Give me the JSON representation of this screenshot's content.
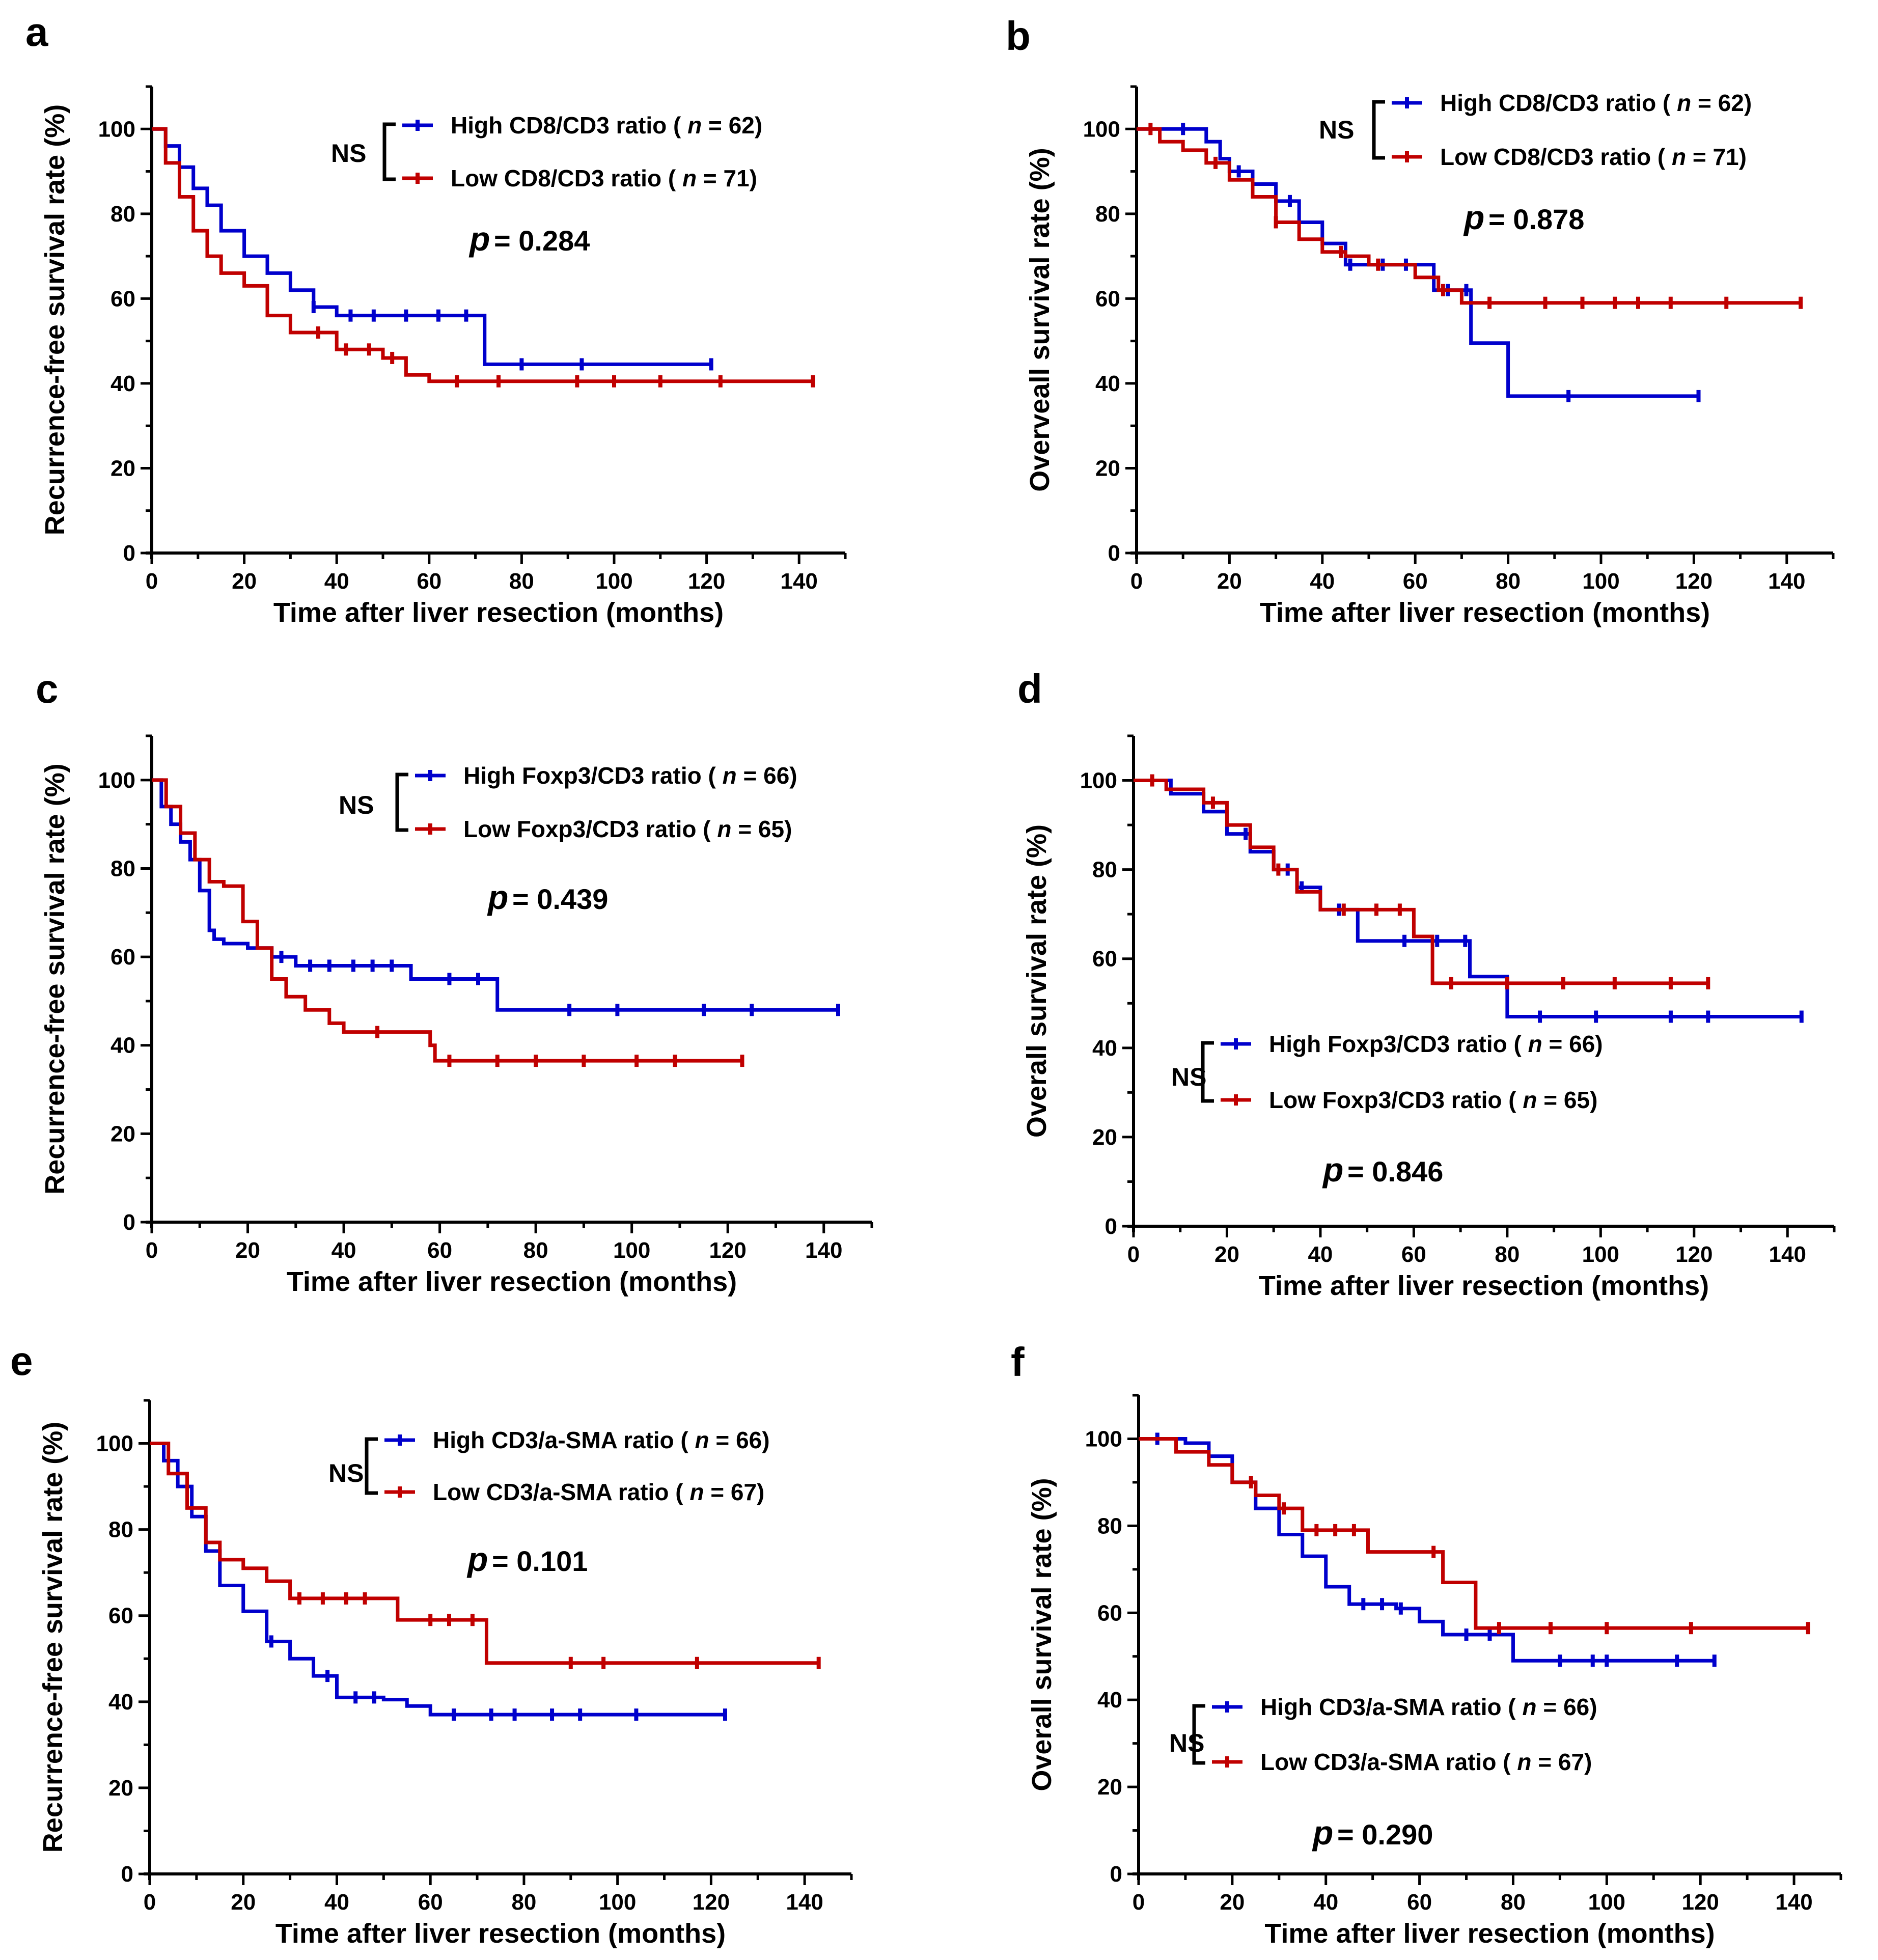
{
  "chart_data": [
    {
      "type": "line",
      "panel": "a",
      "xlabel": "Time after liver resection (months)",
      "ylabel": "Recurrence-free survival rate (%)",
      "xlim": [
        0,
        150
      ],
      "ylim": [
        0,
        110
      ],
      "xticks": [
        0,
        20,
        40,
        60,
        80,
        100,
        120,
        140
      ],
      "yticks": [
        0,
        20,
        40,
        60,
        80,
        100
      ],
      "legend_placement": "top-center",
      "series": [
        {
          "name": "High CD8/CD3 ratio",
          "label_prefix": "High CD8/CD3 ratio (",
          "n_text": "= 62)",
          "color": "#0000CC",
          "x": [
            0,
            3,
            6,
            9,
            12,
            15,
            20,
            25,
            30,
            35,
            40,
            50,
            60,
            72,
            72,
            80,
            100,
            121
          ],
          "y": [
            100,
            96,
            91,
            86,
            82,
            76,
            70,
            66,
            62,
            58,
            56,
            56,
            56,
            56,
            44.5,
            44.5,
            44.5,
            44.5
          ],
          "censor_x": [
            35,
            43,
            48,
            55,
            62,
            68,
            80,
            93,
            121
          ]
        },
        {
          "name": "Low CD8/CD3 ratio",
          "label_prefix": "Low CD8/CD3 ratio (",
          "n_text": "= 71)",
          "color": "#C00000",
          "x": [
            0,
            3,
            6,
            9,
            12,
            15,
            20,
            25,
            30,
            40,
            50,
            55,
            60,
            80,
            100,
            120,
            143
          ],
          "y": [
            100,
            92,
            84,
            76,
            70,
            66,
            63,
            56,
            52,
            48,
            46,
            42,
            40.5,
            40.5,
            40.5,
            40.5,
            40.5
          ],
          "censor_x": [
            36,
            42,
            47,
            52,
            66,
            75,
            92,
            100,
            110,
            123,
            143
          ]
        }
      ],
      "legend_bracket": "NS",
      "p_symbol": "p",
      "p_text": "= 0.284"
    },
    {
      "type": "line",
      "panel": "b",
      "xlabel": "Time after liver resection (months)",
      "ylabel": "Overveall survival rate (%)",
      "xlim": [
        0,
        150
      ],
      "ylim": [
        0,
        110
      ],
      "xticks": [
        0,
        20,
        40,
        60,
        80,
        100,
        120,
        140
      ],
      "yticks": [
        0,
        20,
        40,
        60,
        80,
        100
      ],
      "legend_placement": "top-center",
      "series": [
        {
          "name": "High CD8/CD3 ratio",
          "label_prefix": "High CD8/CD3 ratio (",
          "n_text": "= 62)",
          "color": "#0000CC",
          "x": [
            0,
            12,
            15,
            18,
            20,
            25,
            30,
            35,
            40,
            45,
            50,
            64,
            64,
            72,
            72,
            80,
            80,
            121
          ],
          "y": [
            100,
            100,
            97,
            93,
            90,
            87,
            83,
            78,
            73,
            68,
            68,
            68,
            62,
            62,
            49.5,
            49.5,
            37,
            37
          ],
          "censor_x": [
            10,
            22,
            33,
            46,
            53,
            58,
            67,
            71,
            93,
            121
          ]
        },
        {
          "name": "Low CD8/CD3 ratio",
          "label_prefix": "Low CD8/CD3 ratio (",
          "n_text": "= 71)",
          "color": "#C00000",
          "x": [
            0,
            5,
            10,
            15,
            20,
            25,
            30,
            35,
            40,
            45,
            50,
            60,
            65,
            70,
            80,
            100,
            143
          ],
          "y": [
            100,
            97,
            95,
            92,
            88,
            84,
            78,
            74,
            71,
            70,
            68,
            65,
            62,
            59,
            59,
            59,
            59
          ],
          "censor_x": [
            3,
            17,
            30,
            44,
            52,
            66,
            76,
            88,
            96,
            103,
            108,
            115,
            127,
            143
          ]
        }
      ],
      "legend_bracket": "NS",
      "p_symbol": "p",
      "p_text": "= 0.878"
    },
    {
      "type": "line",
      "panel": "c",
      "xlabel": "Time after liver resection (months)",
      "ylabel": "Recurrence-free survival rate (%)",
      "xlim": [
        0,
        150
      ],
      "ylim": [
        0,
        110
      ],
      "xticks": [
        0,
        20,
        40,
        60,
        80,
        100,
        120,
        140
      ],
      "yticks": [
        0,
        20,
        40,
        60,
        80,
        100
      ],
      "legend_placement": "top-center",
      "series": [
        {
          "name": "High Foxp3/CD3 ratio",
          "label_prefix": "High Foxp3/CD3 ratio (",
          "n_text": "= 66)",
          "color": "#0000CC",
          "x": [
            0,
            2,
            4,
            6,
            8,
            10,
            12,
            13,
            15,
            20,
            25,
            30,
            40,
            54,
            54,
            72,
            72,
            100,
            143
          ],
          "y": [
            100,
            94,
            90,
            86,
            82,
            75,
            66,
            64,
            63,
            62,
            60,
            58,
            58,
            58,
            55,
            55,
            48,
            48,
            48
          ],
          "censor_x": [
            27,
            33,
            37,
            42,
            46,
            50,
            62,
            68,
            87,
            97,
            115,
            125,
            143
          ]
        },
        {
          "name": "Low Foxp3/CD3 ratio",
          "label_prefix": "Low Foxp3/CD3 ratio (",
          "n_text": "= 65)",
          "color": "#C00000",
          "x": [
            0,
            3,
            6,
            9,
            12,
            15,
            19,
            19,
            22,
            25,
            28,
            32,
            37,
            40,
            55,
            58,
            59,
            80,
            123
          ],
          "y": [
            100,
            94,
            88,
            82,
            77,
            76,
            76,
            68,
            62,
            55,
            51,
            48,
            45,
            43,
            43,
            40,
            36.5,
            36.5,
            36.5
          ],
          "censor_x": [
            47,
            62,
            72,
            80,
            90,
            101,
            109,
            123
          ]
        }
      ],
      "legend_bracket": "NS",
      "p_symbol": "p",
      "p_text": "= 0.439"
    },
    {
      "type": "line",
      "panel": "d",
      "xlabel": "Time after liver resection (months)",
      "ylabel": "Overall survival rate (%)",
      "xlim": [
        0,
        150
      ],
      "ylim": [
        0,
        110
      ],
      "xticks": [
        0,
        20,
        40,
        60,
        80,
        100,
        120,
        140
      ],
      "yticks": [
        0,
        20,
        40,
        60,
        80,
        100
      ],
      "legend_placement": "bottom-center",
      "series": [
        {
          "name": "High Foxp3/CD3 ratio",
          "label_prefix": "High Foxp3/CD3 ratio (",
          "n_text": "= 66)",
          "color": "#0000CC",
          "x": [
            0,
            8,
            8,
            15,
            20,
            25,
            30,
            35,
            40,
            48,
            48,
            72,
            72,
            80,
            80,
            143
          ],
          "y": [
            100,
            100,
            97,
            93,
            88,
            84,
            80,
            76,
            71,
            71,
            64,
            64,
            56,
            56,
            47,
            47
          ],
          "censor_x": [
            24,
            33,
            36,
            44,
            58,
            65,
            71,
            87,
            99,
            115,
            123,
            143
          ]
        },
        {
          "name": "Low Foxp3/CD3 ratio",
          "label_prefix": "Low Foxp3/CD3 ratio (",
          "n_text": "= 65)",
          "color": "#C00000",
          "x": [
            0,
            7,
            7,
            15,
            20,
            25,
            30,
            35,
            40,
            59,
            60,
            64,
            64,
            123
          ],
          "y": [
            100,
            100,
            98,
            95,
            90,
            85,
            80,
            75,
            71,
            71,
            65,
            65,
            54.5,
            54.5
          ],
          "censor_x": [
            4,
            17,
            31,
            45,
            52,
            57,
            68,
            80,
            92,
            103,
            115,
            123
          ]
        }
      ],
      "legend_bracket": "NS",
      "p_symbol": "p",
      "p_text": "= 0.846"
    },
    {
      "type": "line",
      "panel": "e",
      "xlabel": "Time after liver resection (months)",
      "ylabel": "Recurrence-free survival rate (%)",
      "xlim": [
        0,
        150
      ],
      "ylim": [
        0,
        110
      ],
      "xticks": [
        0,
        20,
        40,
        60,
        80,
        100,
        120,
        140
      ],
      "yticks": [
        0,
        20,
        40,
        60,
        80,
        100
      ],
      "legend_placement": "top-center",
      "series": [
        {
          "name": "High CD3/a-SMA ratio",
          "label_prefix": "High CD3/a-SMA ratio (",
          "n_text": "= 66)",
          "color": "#0000CC",
          "x": [
            0,
            3,
            6,
            9,
            12,
            15,
            20,
            25,
            30,
            35,
            40,
            50,
            55,
            60,
            80,
            100,
            123
          ],
          "y": [
            100,
            96,
            90,
            83,
            75,
            67,
            61,
            54,
            50,
            46,
            41,
            40.5,
            39,
            37,
            37,
            37,
            37
          ],
          "censor_x": [
            26,
            38,
            44,
            48,
            65,
            73,
            78,
            86,
            92,
            104,
            123
          ]
        },
        {
          "name": "Low CD3/a-SMA ratio",
          "label_prefix": "Low CD3/a-SMA ratio (",
          "n_text": "= 67)",
          "color": "#C00000",
          "x": [
            0,
            4,
            8,
            12,
            15,
            20,
            25,
            30,
            53,
            53,
            72,
            72,
            143
          ],
          "y": [
            100,
            93,
            85,
            77,
            73,
            71,
            68,
            64,
            64,
            59,
            59,
            49,
            49
          ],
          "censor_x": [
            32,
            37,
            42,
            46,
            60,
            64,
            69,
            90,
            97,
            117,
            143
          ]
        }
      ],
      "legend_bracket": "NS",
      "p_symbol": "p",
      "p_text": "= 0.101"
    },
    {
      "type": "line",
      "panel": "f",
      "xlabel": "Time after liver resection (months)",
      "ylabel": "Overall survival rate (%)",
      "xlim": [
        0,
        150
      ],
      "ylim": [
        0,
        110
      ],
      "xticks": [
        0,
        20,
        40,
        60,
        80,
        100,
        120,
        140
      ],
      "yticks": [
        0,
        20,
        40,
        60,
        80,
        100
      ],
      "legend_placement": "bottom-center",
      "series": [
        {
          "name": "High CD3/a-SMA ratio",
          "label_prefix": "High CD3/a-SMA ratio (",
          "n_text": "= 66)",
          "color": "#0000CC",
          "x": [
            0,
            10,
            15,
            20,
            25,
            30,
            35,
            40,
            45,
            55,
            60,
            65,
            80,
            80,
            123
          ],
          "y": [
            100,
            99,
            96,
            90,
            84,
            78,
            73,
            66,
            62,
            61,
            58,
            55,
            55,
            49,
            49
          ],
          "censor_x": [
            4,
            48,
            52,
            56,
            70,
            75,
            90,
            97,
            100,
            115,
            123
          ]
        },
        {
          "name": "Low CD3/a-SMA ratio",
          "label_prefix": "Low CD3/a-SMA ratio (",
          "n_text": "= 67)",
          "color": "#C00000",
          "x": [
            0,
            8,
            15,
            20,
            25,
            30,
            35,
            49,
            49,
            65,
            65,
            72,
            72,
            143
          ],
          "y": [
            100,
            97,
            94,
            90,
            87,
            84,
            79,
            79,
            74,
            74,
            67,
            67,
            56.5,
            56.5
          ],
          "censor_x": [
            24,
            31,
            38,
            42,
            46,
            63,
            77,
            88,
            100,
            118,
            143
          ]
        }
      ],
      "legend_bracket": "NS",
      "p_symbol": "p",
      "p_text": "= 0.290"
    }
  ]
}
